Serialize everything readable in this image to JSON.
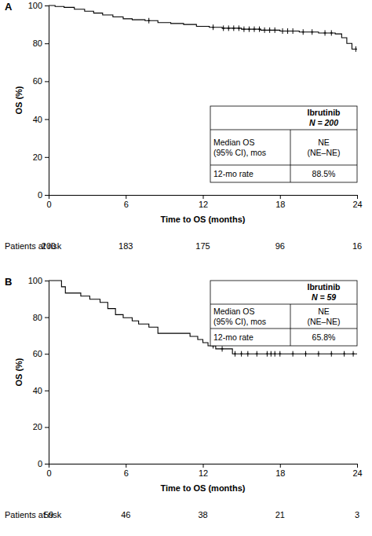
{
  "chart_data": [
    {
      "type": "line",
      "title": "A",
      "xlabel": "Time to OS (months)",
      "ylabel": "OS (%)",
      "xlim": [
        0,
        24
      ],
      "xticks": [
        0,
        6,
        12,
        18,
        24
      ],
      "ylim": [
        0,
        100
      ],
      "yticks": [
        0,
        20,
        40,
        60,
        80,
        100
      ],
      "grid": false,
      "line_style": "step",
      "series": [
        {
          "name": "Ibrutinib",
          "color": "#000000",
          "x": [
            0,
            0.5,
            1.2,
            2,
            2.8,
            3.5,
            4.2,
            5,
            5.8,
            6.5,
            7.5,
            8.5,
            9.5,
            10.5,
            11.5,
            12.5,
            13.5,
            15,
            16.5,
            18,
            19.5,
            21,
            22.3,
            22.8,
            23.2,
            23.6,
            24
          ],
          "values": [
            100,
            99.5,
            99,
            98,
            97,
            96,
            95,
            94,
            93,
            92.5,
            92,
            91,
            90.5,
            90,
            89,
            88.5,
            88,
            87.5,
            87,
            86.5,
            86,
            85.5,
            85,
            83,
            80,
            77,
            77
          ]
        }
      ],
      "censored": {
        "marker": "plus",
        "x": [
          7.8,
          12.8,
          13.6,
          14,
          14.4,
          14.8,
          15.2,
          15.6,
          16,
          16.4,
          16.8,
          17.2,
          17.6,
          18.2,
          18.6,
          19,
          19.8,
          20.5,
          21.5,
          22,
          23.9
        ],
        "values": [
          92,
          88.5,
          88,
          88,
          88,
          88,
          87.5,
          87.5,
          87.5,
          87.5,
          87,
          87,
          87,
          86.5,
          86.5,
          86.5,
          86,
          86,
          85.5,
          85.5,
          77
        ]
      },
      "legend_table": {
        "header": [
          "Ibrutinib",
          "N = 200"
        ],
        "rows": [
          [
            [
              "Median OS",
              "(95% CI), mos"
            ],
            [
              "NE",
              "(NE–NE)"
            ]
          ],
          [
            [
              "12-mo rate"
            ],
            [
              "88.5%"
            ]
          ]
        ]
      },
      "risk_table": {
        "label": "Patients at risk",
        "x": [
          0,
          6,
          12,
          18,
          24
        ],
        "values": [
          200,
          183,
          175,
          96,
          16
        ]
      }
    },
    {
      "type": "line",
      "title": "B",
      "xlabel": "Time to OS (months)",
      "ylabel": "OS (%)",
      "xlim": [
        0,
        24
      ],
      "xticks": [
        0,
        6,
        12,
        18,
        24
      ],
      "ylim": [
        0,
        100
      ],
      "yticks": [
        0,
        20,
        40,
        60,
        80,
        100
      ],
      "grid": false,
      "line_style": "step",
      "series": [
        {
          "name": "Ibrutinib",
          "color": "#000000",
          "x": [
            0,
            1,
            1.3,
            2.5,
            3.2,
            4,
            4.6,
            5.2,
            5.8,
            6.5,
            7,
            7.8,
            8.5,
            11,
            11.6,
            12,
            12.4,
            13,
            14.3,
            24
          ],
          "values": [
            100,
            96.6,
            93.2,
            91.5,
            89.8,
            88.1,
            84.7,
            81.4,
            79.7,
            78,
            76.3,
            74.6,
            71.2,
            69.5,
            67.8,
            66.1,
            64.4,
            62.7,
            60,
            60
          ]
        }
      ],
      "censored": {
        "marker": "plus",
        "x": [
          12.8,
          13.5,
          14.5,
          15,
          15.5,
          16.2,
          17,
          17.3,
          17.6,
          18,
          19,
          20,
          21,
          22,
          23,
          23.7
        ],
        "values": [
          64.4,
          62.7,
          60,
          60,
          60,
          60,
          60,
          60,
          60,
          60,
          60,
          60,
          60,
          60,
          60,
          60
        ]
      },
      "legend_table": {
        "header": [
          "Ibrutinib",
          "N = 59"
        ],
        "rows": [
          [
            [
              "Median OS",
              "(95% CI), mos"
            ],
            [
              "NE",
              "(NE–NE)"
            ]
          ],
          [
            [
              "12-mo rate"
            ],
            [
              "65.8%"
            ]
          ]
        ]
      },
      "risk_table": {
        "label": "Patients at risk",
        "x": [
          0,
          6,
          12,
          18,
          24
        ],
        "values": [
          59,
          46,
          38,
          21,
          3
        ]
      }
    }
  ]
}
